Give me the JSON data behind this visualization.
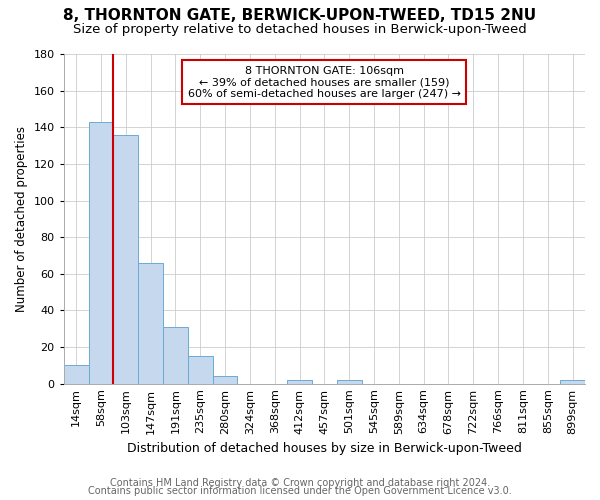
{
  "title": "8, THORNTON GATE, BERWICK-UPON-TWEED, TD15 2NU",
  "subtitle": "Size of property relative to detached houses in Berwick-upon-Tweed",
  "xlabel": "Distribution of detached houses by size in Berwick-upon-Tweed",
  "ylabel": "Number of detached properties",
  "footer_line1": "Contains HM Land Registry data © Crown copyright and database right 2024.",
  "footer_line2": "Contains public sector information licensed under the Open Government Licence v3.0.",
  "bin_labels": [
    "14sqm",
    "58sqm",
    "103sqm",
    "147sqm",
    "191sqm",
    "235sqm",
    "280sqm",
    "324sqm",
    "368sqm",
    "412sqm",
    "457sqm",
    "501sqm",
    "545sqm",
    "589sqm",
    "634sqm",
    "678sqm",
    "722sqm",
    "766sqm",
    "811sqm",
    "855sqm",
    "899sqm"
  ],
  "bar_heights": [
    10,
    143,
    136,
    66,
    31,
    15,
    4,
    0,
    0,
    2,
    0,
    2,
    0,
    0,
    0,
    0,
    0,
    0,
    0,
    0,
    2
  ],
  "bar_color": "#c5d8ee",
  "bar_edge_color": "#6aaad4",
  "red_line_index": 2,
  "red_line_color": "#cc0000",
  "annotation_text": "8 THORNTON GATE: 106sqm\n← 39% of detached houses are smaller (159)\n60% of semi-detached houses are larger (247) →",
  "annotation_box_facecolor": "#ffffff",
  "annotation_box_edgecolor": "#cc0000",
  "ylim": [
    0,
    180
  ],
  "yticks": [
    0,
    20,
    40,
    60,
    80,
    100,
    120,
    140,
    160,
    180
  ],
  "grid_color": "#cccccc",
  "fig_bg_color": "#ffffff",
  "plot_bg_color": "#ffffff",
  "title_fontsize": 11,
  "subtitle_fontsize": 9.5,
  "ylabel_fontsize": 8.5,
  "xlabel_fontsize": 9,
  "tick_fontsize": 8,
  "annotation_fontsize": 8,
  "footer_fontsize": 7,
  "footer_color": "#666666"
}
